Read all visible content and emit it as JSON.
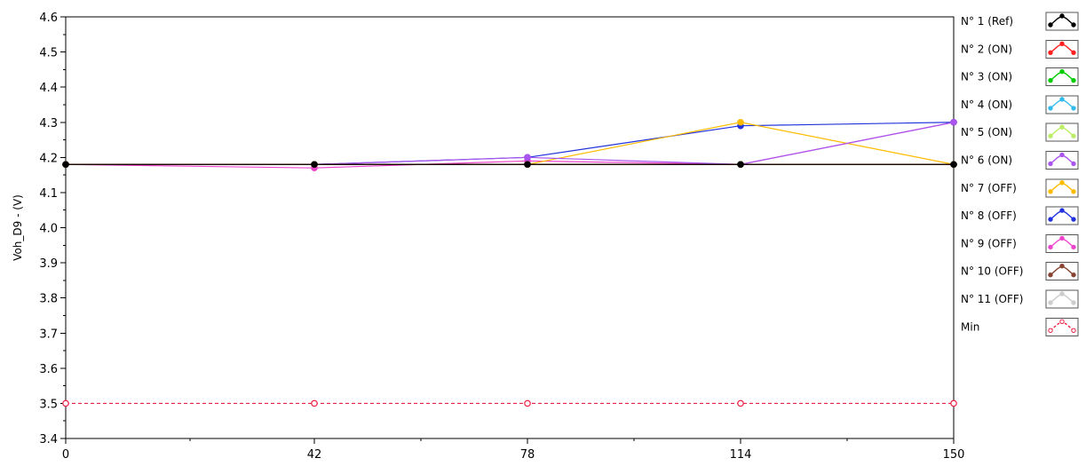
{
  "chart_data": {
    "type": "line",
    "ylabel": "Voh_D9 - (V)",
    "xlabel": "",
    "x": [
      0,
      42,
      78,
      114,
      150
    ],
    "x_ticks": [
      "0",
      "42",
      "78",
      "114",
      "150"
    ],
    "xlim": [
      0,
      150
    ],
    "y_ticks": [
      "3.4",
      "3.5",
      "3.6",
      "3.7",
      "3.8",
      "3.9",
      "4.0",
      "4.1",
      "4.2",
      "4.3",
      "4.4",
      "4.5",
      "4.6"
    ],
    "ylim": [
      3.4,
      4.6
    ],
    "grid": false,
    "legend_position": "right",
    "series": [
      {
        "name": "N° 1 (Ref)",
        "color": "#000000",
        "dash": false,
        "values": [
          4.18,
          4.18,
          4.18,
          4.18,
          4.18
        ]
      },
      {
        "name": "N° 2 (ON)",
        "color": "#ff2020",
        "dash": false,
        "values": [
          4.18,
          4.18,
          4.18,
          4.18,
          4.18
        ]
      },
      {
        "name": "N° 3 (ON)",
        "color": "#00cc00",
        "dash": false,
        "values": [
          4.18,
          4.18,
          4.18,
          4.18,
          4.18
        ]
      },
      {
        "name": "N° 4 (ON)",
        "color": "#33bbee",
        "dash": false,
        "values": [
          4.18,
          4.18,
          4.18,
          4.18,
          4.18
        ]
      },
      {
        "name": "N° 5 (ON)",
        "color": "#bbee66",
        "dash": false,
        "values": [
          4.18,
          4.18,
          4.18,
          4.18,
          4.18
        ]
      },
      {
        "name": "N° 6 (ON)",
        "color": "#aa55ee",
        "dash": false,
        "values": [
          4.18,
          4.18,
          4.2,
          4.18,
          4.3
        ]
      },
      {
        "name": "N° 7 (OFF)",
        "color": "#ffbb00",
        "dash": false,
        "values": [
          4.18,
          4.18,
          4.18,
          4.3,
          4.18
        ]
      },
      {
        "name": "N° 8 (OFF)",
        "color": "#2233dd",
        "dash": false,
        "values": [
          4.18,
          4.18,
          4.2,
          4.29,
          4.3
        ]
      },
      {
        "name": "N° 9 (OFF)",
        "color": "#ee44cc",
        "dash": false,
        "values": [
          4.18,
          4.17,
          4.19,
          4.18,
          4.3
        ]
      },
      {
        "name": "N° 10 (OFF)",
        "color": "#884433",
        "dash": false,
        "values": [
          4.18,
          4.18,
          4.18,
          4.18,
          4.18
        ]
      },
      {
        "name": "N° 11 (OFF)",
        "color": "#cccccc",
        "dash": false,
        "values": [
          4.18,
          4.18,
          4.18,
          4.18,
          4.18
        ]
      },
      {
        "name": "Min",
        "color": "#ee2244",
        "dash": true,
        "values": [
          3.5,
          3.5,
          3.5,
          3.5,
          3.5
        ]
      }
    ]
  }
}
